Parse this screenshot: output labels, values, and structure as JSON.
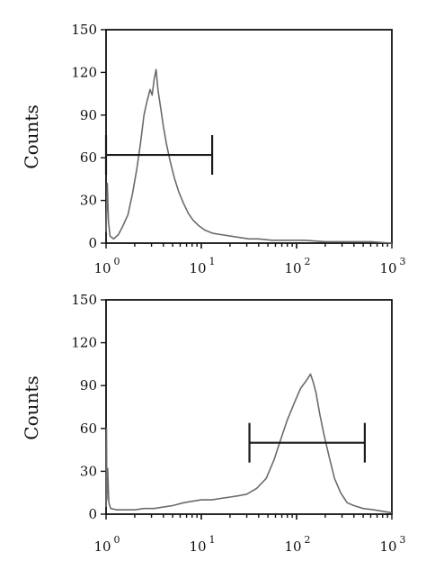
{
  "chart_data": [
    {
      "type": "line",
      "ylabel": "Counts",
      "x_scale": "log",
      "xlim": [
        1,
        1000
      ],
      "ylim": [
        0,
        150
      ],
      "y_ticks": [
        "0",
        "30",
        "60",
        "90",
        "120",
        "150"
      ],
      "x_ticks": [
        {
          "base": "10",
          "exp": "0"
        },
        {
          "base": "10",
          "exp": "1"
        },
        {
          "base": "10",
          "exp": "2"
        },
        {
          "base": "10",
          "exp": "3"
        }
      ],
      "series": [
        {
          "color": "#6b6b6b",
          "x": [
            1,
            1.01,
            1.03,
            1.06,
            1.1,
            1.2,
            1.35,
            1.5,
            1.7,
            1.9,
            2.1,
            2.3,
            2.5,
            2.7,
            2.9,
            3.05,
            3.2,
            3.35,
            3.5,
            3.65,
            3.8,
            4.0,
            4.3,
            4.7,
            5.2,
            5.8,
            6.5,
            7.3,
            8.2,
            9.5,
            11,
            13,
            16,
            20,
            25,
            32,
            40,
            55,
            80,
            120,
            200,
            350,
            600,
            1000
          ],
          "y": [
            8,
            20,
            42,
            15,
            5,
            3,
            6,
            12,
            20,
            35,
            52,
            70,
            90,
            100,
            108,
            104,
            115,
            122,
            108,
            100,
            92,
            82,
            70,
            58,
            46,
            36,
            28,
            21,
            16,
            12,
            9,
            7,
            6,
            5,
            4,
            3,
            3,
            2,
            2,
            2,
            1,
            1,
            1,
            0
          ]
        }
      ],
      "gate": {
        "x_start": 1.0,
        "x_end": 13,
        "y": 62
      }
    },
    {
      "type": "line",
      "ylabel": "Counts",
      "x_scale": "log",
      "xlim": [
        1,
        1000
      ],
      "ylim": [
        0,
        150
      ],
      "y_ticks": [
        "0",
        "30",
        "60",
        "90",
        "120",
        "150"
      ],
      "x_ticks": [
        {
          "base": "10",
          "exp": "0"
        },
        {
          "base": "10",
          "exp": "1"
        },
        {
          "base": "10",
          "exp": "2"
        },
        {
          "base": "10",
          "exp": "3"
        }
      ],
      "series": [
        {
          "color": "#6b6b6b",
          "x": [
            1,
            1.01,
            1.02,
            1.04,
            1.07,
            1.12,
            1.3,
            1.6,
            2.0,
            2.5,
            3.2,
            4,
            5,
            6.5,
            8,
            10,
            13,
            16,
            20,
            25,
            30,
            38,
            48,
            58,
            68,
            80,
            95,
            110,
            125,
            140,
            150,
            160,
            175,
            195,
            220,
            250,
            290,
            340,
            400,
            500,
            650,
            800,
            1000
          ],
          "y": [
            5,
            60,
            10,
            32,
            8,
            4,
            3,
            3,
            3,
            4,
            4,
            5,
            6,
            8,
            9,
            10,
            10,
            11,
            12,
            13,
            14,
            18,
            25,
            38,
            52,
            66,
            78,
            88,
            93,
            98,
            92,
            85,
            70,
            55,
            40,
            25,
            15,
            8,
            6,
            4,
            3,
            2,
            1
          ]
        }
      ],
      "gate": {
        "x_start": 32,
        "x_end": 520,
        "y": 50
      }
    }
  ]
}
